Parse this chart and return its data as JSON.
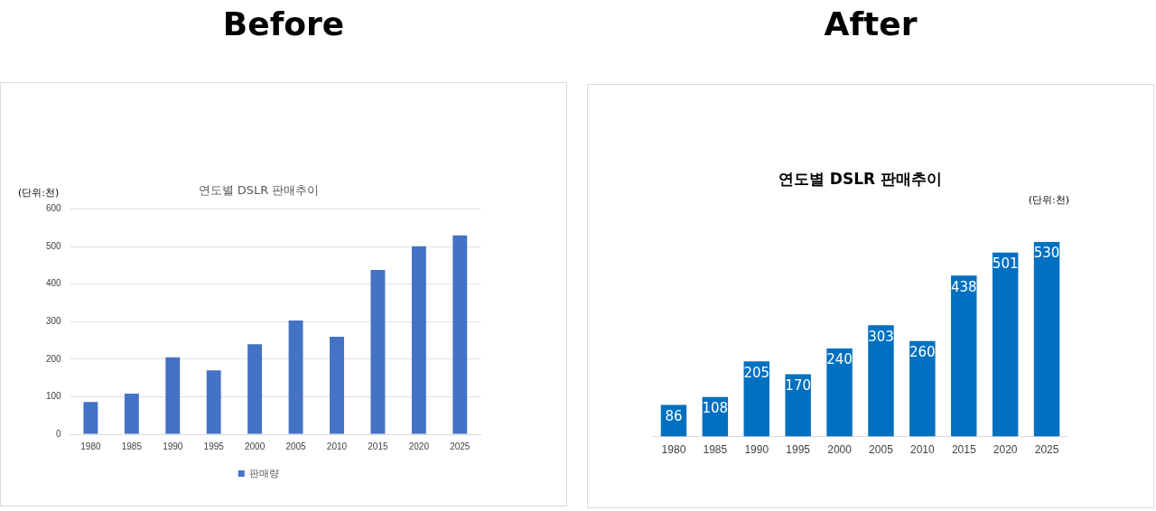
{
  "chart_data": [
    {
      "type": "bar",
      "title": "연도별 DSLR 판매추이",
      "ylabel": "(단위:천)",
      "annotations": [
        "Before"
      ],
      "categories": [
        "1980",
        "1985",
        "1990",
        "1995",
        "2000",
        "2005",
        "2010",
        "2015",
        "2020",
        "2025"
      ],
      "series": [
        {
          "name": "판매량",
          "color": "#4472c4",
          "values": [
            86,
            108,
            205,
            170,
            240,
            303,
            260,
            438,
            501,
            530
          ]
        }
      ],
      "ylim": [
        0,
        600
      ],
      "yticks": [
        0,
        100,
        200,
        300,
        400,
        500,
        600
      ],
      "grid": "y",
      "legend": "bottom"
    },
    {
      "type": "bar",
      "title": "연도별 DSLR 판매추이",
      "annotations": [
        "After",
        "(단위:천)"
      ],
      "categories": [
        "1980",
        "1985",
        "1990",
        "1995",
        "2000",
        "2005",
        "2010",
        "2015",
        "2020",
        "2025"
      ],
      "series": [
        {
          "color": "#0070c0",
          "values": [
            86,
            108,
            205,
            170,
            240,
            303,
            260,
            438,
            501,
            530
          ]
        }
      ],
      "data_labels": true,
      "tick_labels": "x",
      "legend": false
    }
  ]
}
